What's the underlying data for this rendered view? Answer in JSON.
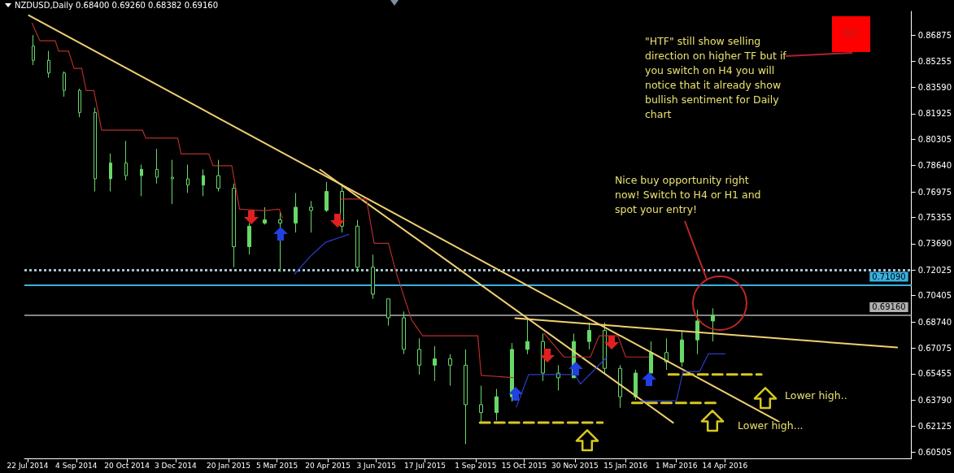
{
  "chart_data": {
    "type": "candlestick",
    "title": "NZDUSD,Daily  0.68400 0.69260 0.68382 0.69160",
    "marker": "none",
    "xlim": [
      "2014-07-19",
      "2016-09-30"
    ],
    "xticks": [
      {
        "value": "2014-07-22",
        "label": "22 Jul 2014"
      },
      {
        "value": "2014-09-04",
        "label": "4 Sep 2014"
      },
      {
        "value": "2014-10-20",
        "label": "20 Oct 2014"
      },
      {
        "value": "2014-12-03",
        "label": "3 Dec 2014"
      },
      {
        "value": "2015-01-20",
        "label": "20 Jan 2015"
      },
      {
        "value": "2015-03-05",
        "label": "5 Mar 2015"
      },
      {
        "value": "2015-04-20",
        "label": "20 Apr 2015"
      },
      {
        "value": "2015-06-03",
        "label": "3 Jun 2015"
      },
      {
        "value": "2015-07-17",
        "label": "17 Jul 2015"
      },
      {
        "value": "2015-09-01",
        "label": "1 Sep 2015"
      },
      {
        "value": "2015-10-15",
        "label": "15 Oct 2015"
      },
      {
        "value": "2015-11-30",
        "label": "30 Nov 2015"
      },
      {
        "value": "2016-01-15",
        "label": "15 Jan 2016"
      },
      {
        "value": "2016-03-01",
        "label": "1 Mar 2016"
      },
      {
        "value": "2016-04-14",
        "label": "14 Apr 2016"
      }
    ],
    "ylim": [
      0.601,
      0.884
    ],
    "yticks": [
      0.86875,
      0.85255,
      {
        "value": 0.8359,
        "label": "0.83590"
      },
      0.81925,
      0.80305,
      {
        "value": 0.7864,
        "label": "0.78640"
      },
      0.76975,
      0.75355,
      {
        "value": 0.7369,
        "label": "0.73690"
      },
      0.72025,
      0.70405,
      {
        "value": 0.6874,
        "label": "0.68740"
      },
      0.67075,
      0.65455,
      {
        "value": 0.6379,
        "label": "0.63790"
      },
      0.62125,
      0.60505
    ],
    "series": [
      {
        "type": "candlestick",
        "color": "#68d868",
        "x": [
          "2014-07-27",
          "2014-08-10",
          "2014-08-24",
          "2014-09-07",
          "2014-09-21",
          "2014-10-05",
          "2014-10-19",
          "2014-11-02",
          "2014-11-16",
          "2014-11-30",
          "2014-12-14",
          "2014-12-28",
          "2015-01-11",
          "2015-01-25",
          "2015-02-08",
          "2015-02-22",
          "2015-03-08",
          "2015-03-22",
          "2015-04-05",
          "2015-04-19",
          "2015-05-03",
          "2015-05-17",
          "2015-05-31",
          "2015-06-14",
          "2015-06-28",
          "2015-07-12",
          "2015-07-26",
          "2015-08-09",
          "2015-08-23",
          "2015-09-06",
          "2015-09-20",
          "2015-10-04",
          "2015-10-18",
          "2015-11-01",
          "2015-11-15",
          "2015-11-29",
          "2015-12-13",
          "2015-12-27",
          "2016-01-10",
          "2016-01-24",
          "2016-02-07",
          "2016-02-21",
          "2016-03-06",
          "2016-03-20",
          "2016-04-03"
        ],
        "ohlc": [
          [
            0.862,
            0.869,
            0.85,
            0.853
          ],
          [
            0.853,
            0.859,
            0.842,
            0.845
          ],
          [
            0.845,
            0.846,
            0.83,
            0.834
          ],
          [
            0.834,
            0.835,
            0.817,
            0.82
          ],
          [
            0.82,
            0.823,
            0.77,
            0.778
          ],
          [
            0.778,
            0.794,
            0.77,
            0.788
          ],
          [
            0.788,
            0.802,
            0.777,
            0.78
          ],
          [
            0.78,
            0.787,
            0.767,
            0.784
          ],
          [
            0.784,
            0.797,
            0.775,
            0.779
          ],
          [
            0.779,
            0.79,
            0.762,
            0.778
          ],
          [
            0.778,
            0.787,
            0.769,
            0.774
          ],
          [
            0.774,
            0.784,
            0.767,
            0.78
          ],
          [
            0.78,
            0.79,
            0.77,
            0.772
          ],
          [
            0.772,
            0.775,
            0.722,
            0.735
          ],
          [
            0.735,
            0.75,
            0.73,
            0.748
          ],
          [
            0.75,
            0.76,
            0.749,
            0.752
          ],
          [
            0.752,
            0.757,
            0.719,
            0.75
          ],
          [
            0.75,
            0.769,
            0.744,
            0.76
          ],
          [
            0.76,
            0.764,
            0.744,
            0.758
          ],
          [
            0.758,
            0.776,
            0.757,
            0.77
          ],
          [
            0.77,
            0.775,
            0.744,
            0.748
          ],
          [
            0.748,
            0.752,
            0.719,
            0.722
          ],
          [
            0.722,
            0.73,
            0.702,
            0.705
          ],
          [
            0.702,
            0.702,
            0.685,
            0.69
          ],
          [
            0.69,
            0.694,
            0.667,
            0.67
          ],
          [
            0.67,
            0.677,
            0.654,
            0.66
          ],
          [
            0.66,
            0.672,
            0.65,
            0.664
          ],
          [
            0.664,
            0.667,
            0.647,
            0.66
          ],
          [
            0.66,
            0.67,
            0.61,
            0.635
          ],
          [
            0.635,
            0.647,
            0.624,
            0.63
          ],
          [
            0.63,
            0.645,
            0.625,
            0.64
          ],
          [
            0.64,
            0.674,
            0.637,
            0.67
          ],
          [
            0.67,
            0.689,
            0.667,
            0.675
          ],
          [
            0.675,
            0.68,
            0.65,
            0.655
          ],
          [
            0.655,
            0.66,
            0.644,
            0.652
          ],
          [
            0.652,
            0.68,
            0.652,
            0.675
          ],
          [
            0.675,
            0.687,
            0.67,
            0.682
          ],
          [
            0.682,
            0.687,
            0.655,
            0.658
          ],
          [
            0.658,
            0.66,
            0.633,
            0.64
          ],
          [
            0.64,
            0.657,
            0.638,
            0.655
          ],
          [
            0.655,
            0.675,
            0.655,
            0.668
          ],
          [
            0.668,
            0.677,
            0.657,
            0.662
          ],
          [
            0.662,
            0.682,
            0.659,
            0.676
          ],
          [
            0.676,
            0.695,
            0.667,
            0.688
          ],
          [
            0.688,
            0.696,
            0.675,
            0.6916
          ]
        ]
      },
      {
        "type": "line",
        "color": "#c03030",
        "line_style": "dotted",
        "x": [
          "2014-07-26",
          "2014-08-02",
          "2014-08-16",
          "2014-08-19",
          "2014-08-28",
          "2014-09-02",
          "2014-09-09",
          "2014-09-13",
          "2014-09-20",
          "2014-09-27",
          "2014-11-03",
          "2014-11-06",
          "2014-12-05",
          "2014-12-08",
          "2015-01-02",
          "2015-01-06",
          "2015-01-23",
          "2015-01-30",
          "2015-02-21",
          "2015-03-07",
          "2015-03-10"
        ],
        "values": [
          0.8765,
          0.8654,
          0.8654,
          0.8589,
          0.8589,
          0.8479,
          0.8479,
          0.8339,
          0.8339,
          0.8088,
          0.8088,
          0.8038,
          0.8038,
          0.7938,
          0.7938,
          0.7863,
          0.7863,
          0.7588,
          0.7578,
          0.7588,
          0.7528
        ]
      },
      {
        "type": "line",
        "color": "#c03030",
        "line_style": "dotted",
        "x": [
          "2015-05-02",
          "2015-05-25",
          "2015-06-01",
          "2015-06-14",
          "2015-06-21",
          "2015-07-05",
          "2015-07-15",
          "2015-09-03",
          "2015-09-06",
          "2015-10-05"
        ],
        "values": [
          0.7652,
          0.7652,
          0.7372,
          0.7372,
          0.7186,
          0.6886,
          0.6786,
          0.6786,
          0.6536,
          0.6521
        ]
      },
      {
        "type": "line",
        "color": "#c03030",
        "line_style": "dotted",
        "x": [
          "2015-11-02",
          "2015-11-20",
          "2015-12-14",
          "2015-12-22",
          "2016-01-08",
          "2016-01-15",
          "2016-02-05"
        ],
        "values": [
          0.6802,
          0.6652,
          0.6652,
          0.6786,
          0.6786,
          0.6652,
          0.6652
        ]
      },
      {
        "type": "line",
        "color": "#3040d8",
        "line_style": "dotted",
        "x": [
          "2015-03-21",
          "2015-04-04",
          "2015-04-18",
          "2015-05-09"
        ],
        "values": [
          0.7178,
          0.7288,
          0.7378,
          0.7428
        ]
      },
      {
        "type": "line",
        "color": "#3040d8",
        "line_style": "dotted",
        "x": [
          "2015-10-08",
          "2015-10-19",
          "2015-11-30",
          "2015-12-05",
          "2015-12-29"
        ],
        "values": [
          0.6336,
          0.6541,
          0.6541,
          0.6481,
          0.6652
        ]
      },
      {
        "type": "line",
        "color": "#3040d8",
        "line_style": "dotted",
        "x": [
          "2016-01-29",
          "2016-03-01",
          "2016-03-07",
          "2016-03-22",
          "2016-03-30",
          "2016-04-14"
        ],
        "values": [
          0.6375,
          0.6375,
          0.656,
          0.656,
          0.6672,
          0.6672
        ]
      },
      {
        "type": "line",
        "color": "#f0d070",
        "line_style": "solid",
        "x": [
          "2014-07-23",
          "2016-06-01"
        ],
        "values": [
          0.8815,
          0.6246
        ]
      },
      {
        "type": "line",
        "color": "#f0d070",
        "line_style": "solid",
        "x": [
          "2015-04-13",
          "2016-02-27"
        ],
        "values": [
          0.7838,
          0.6236
        ]
      },
      {
        "type": "line",
        "color": "#f0d070",
        "line_style": "solid",
        "x": [
          "2015-10-07",
          "2016-09-17"
        ],
        "values": [
          0.6897,
          0.6712
        ]
      },
      {
        "type": "line",
        "color": "#d8c820",
        "line_style": "dashed",
        "x": [
          "2015-09-05",
          "2015-12-25"
        ],
        "values": [
          0.6236,
          0.6236
        ]
      },
      {
        "type": "line",
        "color": "#d8c820",
        "line_style": "dashed",
        "x": [
          "2016-01-21",
          "2016-04-09"
        ],
        "values": [
          0.6361,
          0.6361
        ]
      },
      {
        "type": "line",
        "color": "#d8c820",
        "line_style": "dashed",
        "x": [
          "2016-02-23",
          "2016-05-17"
        ],
        "values": [
          0.6541,
          0.6541
        ]
      }
    ],
    "ref_lines": [
      {
        "axis": "y",
        "value": 0.72025,
        "color": "#a8c0cc",
        "line_style": "dotted"
      },
      {
        "axis": "y",
        "value": 0.7109,
        "label": "0.71090",
        "color": "#38b0e0",
        "line_style": "solid"
      },
      {
        "axis": "y",
        "value": 0.6916,
        "label": "0.69160",
        "color": "#b0b0b0",
        "line_style": "solid"
      }
    ],
    "annotations": [
      "W1",
      "\"HTF\" still show selling direction on higher TF but if you switch on H4 you will notice that it already show bullish sentiment for Daily chart",
      "Nice buy opportunity right now! Switch to H4 or H1 and spot your entry!",
      "Lower high..",
      "Lower high..."
    ]
  }
}
